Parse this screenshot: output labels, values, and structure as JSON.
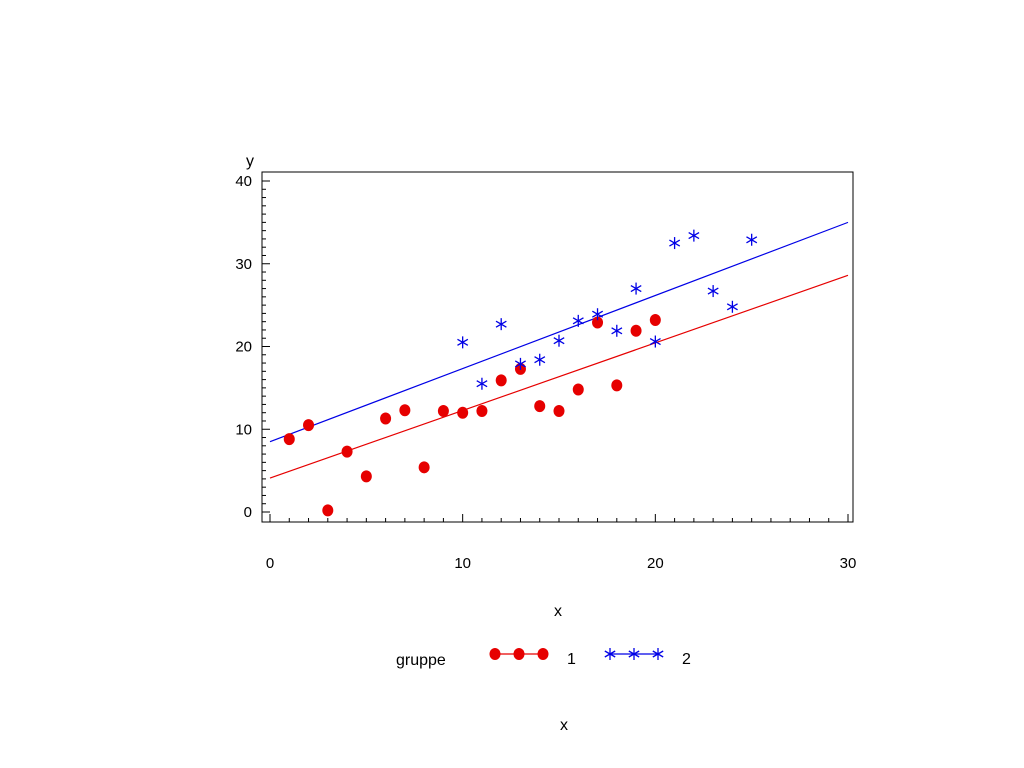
{
  "chart_data": {
    "type": "scatter",
    "xlabel": "x",
    "ylabel": "y",
    "xlim": [
      0,
      30
    ],
    "ylim": [
      -1,
      41
    ],
    "xticks": [
      0,
      10,
      20,
      30
    ],
    "yticks": [
      0,
      10,
      20,
      30,
      40
    ],
    "grid": false,
    "legend": {
      "title": "gruppe",
      "placement": "bottom"
    },
    "footnote": "x",
    "series": [
      {
        "name": "1",
        "marker": "dot",
        "color": "#e60000",
        "x": [
          1,
          2,
          3,
          4,
          5,
          6,
          7,
          8,
          9,
          10,
          11,
          12,
          13,
          14,
          15,
          16,
          17,
          18,
          19,
          20
        ],
        "y": [
          8.8,
          10.5,
          0.2,
          7.3,
          4.3,
          11.3,
          12.3,
          5.4,
          12.2,
          12.0,
          12.2,
          15.9,
          17.3,
          12.8,
          12.2,
          14.8,
          22.9,
          15.3,
          21.9,
          23.2
        ],
        "fit": {
          "x": [
            0,
            30
          ],
          "y": [
            4.1,
            28.6
          ]
        }
      },
      {
        "name": "2",
        "marker": "star",
        "color": "#0000e6",
        "x": [
          10,
          11,
          12,
          13,
          14,
          15,
          16,
          17,
          18,
          19,
          20,
          21,
          22,
          23,
          24,
          25
        ],
        "y": [
          20.5,
          15.5,
          22.7,
          17.9,
          18.4,
          20.7,
          23.1,
          23.9,
          21.9,
          27.0,
          20.6,
          32.5,
          33.4,
          26.7,
          24.8,
          32.9
        ],
        "fit": {
          "x": [
            0,
            30
          ],
          "y": [
            8.5,
            35.0
          ]
        }
      }
    ]
  }
}
